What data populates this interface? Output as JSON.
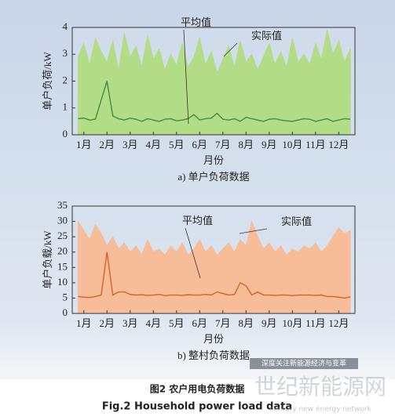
{
  "chart_data": [
    {
      "type": "area-line",
      "caption": "a) 单户负荷数据",
      "y_label": "单户负荷/kW",
      "x_label": "月份",
      "xlim": [
        0.5,
        12.7
      ],
      "ylim": [
        0,
        4
      ],
      "yticks": [
        0,
        1,
        2,
        3,
        4
      ],
      "xticks": [
        {
          "value": 1,
          "label": "1月"
        },
        {
          "value": 2,
          "label": "2月"
        },
        {
          "value": 3,
          "label": "3月"
        },
        {
          "value": 4,
          "label": "4月"
        },
        {
          "value": 5,
          "label": "5月"
        },
        {
          "value": 6,
          "label": "6月"
        },
        {
          "value": 7,
          "label": "7月"
        },
        {
          "value": 8,
          "label": "8月"
        },
        {
          "value": 9,
          "label": "9月"
        },
        {
          "value": 10,
          "label": "10月"
        },
        {
          "value": 11,
          "label": "11月"
        },
        {
          "value": 12,
          "label": "12月"
        }
      ],
      "x": [
        0.75,
        1,
        1.25,
        1.5,
        1.75,
        2,
        2.25,
        2.5,
        2.75,
        3,
        3.25,
        3.5,
        3.75,
        4,
        4.25,
        4.5,
        4.75,
        5,
        5.25,
        5.5,
        5.75,
        6,
        6.25,
        6.5,
        6.75,
        7,
        7.25,
        7.5,
        7.75,
        8,
        8.25,
        8.5,
        8.75,
        9,
        9.25,
        9.5,
        9.75,
        10,
        10.25,
        10.5,
        10.75,
        11,
        11.25,
        11.5,
        11.75,
        12,
        12.25,
        12.5
      ],
      "series": [
        {
          "name": "实际值",
          "color": "#b3dc86",
          "values": [
            2.9,
            3.4,
            2.6,
            3.6,
            3.1,
            2.7,
            3.5,
            2.4,
            3.8,
            2.9,
            3.3,
            2.5,
            3.7,
            2.8,
            3.2,
            2.4,
            3.0,
            2.6,
            3.4,
            2.5,
            2.9,
            3.6,
            2.6,
            3.1,
            2.3,
            2.8,
            3.3,
            2.5,
            3.5,
            2.7,
            3.0,
            2.4,
            2.9,
            3.4,
            2.6,
            3.1,
            2.5,
            3.6,
            2.7,
            3.0,
            2.6,
            3.4,
            2.8,
            3.9,
            3.0,
            3.5,
            2.7,
            3.2
          ]
        },
        {
          "name": "平均值",
          "color": "#3f8f3f",
          "values": [
            0.6,
            0.62,
            0.55,
            0.58,
            1.3,
            2.0,
            0.7,
            0.6,
            0.55,
            0.62,
            0.58,
            0.5,
            0.6,
            0.55,
            0.5,
            0.58,
            0.6,
            0.52,
            0.55,
            0.6,
            0.75,
            0.55,
            0.6,
            0.62,
            0.8,
            0.58,
            0.55,
            0.6,
            0.5,
            0.65,
            0.6,
            0.55,
            0.5,
            0.58,
            0.6,
            0.55,
            0.52,
            0.5,
            0.55,
            0.6,
            0.58,
            0.5,
            0.55,
            0.6,
            0.5,
            0.55,
            0.6,
            0.58
          ]
        }
      ]
    },
    {
      "type": "area-line",
      "caption": "b) 整村负荷数据",
      "y_label": "单户负载/kW",
      "x_label": "月份",
      "xlim": [
        0.5,
        12.7
      ],
      "ylim": [
        0,
        35
      ],
      "yticks": [
        0,
        5,
        10,
        15,
        20,
        25,
        30,
        35
      ],
      "xticks": [
        {
          "value": 1,
          "label": "1月"
        },
        {
          "value": 2,
          "label": "2月"
        },
        {
          "value": 3,
          "label": "3月"
        },
        {
          "value": 4,
          "label": "4月"
        },
        {
          "value": 5,
          "label": "5月"
        },
        {
          "value": 6,
          "label": "6月"
        },
        {
          "value": 7,
          "label": "7月"
        },
        {
          "value": 8,
          "label": "8月"
        },
        {
          "value": 9,
          "label": "9月"
        },
        {
          "value": 10,
          "label": "10月"
        },
        {
          "value": 11,
          "label": "11月"
        },
        {
          "value": 12,
          "label": "12月"
        }
      ],
      "x": [
        0.75,
        1,
        1.25,
        1.5,
        1.75,
        2,
        2.25,
        2.5,
        2.75,
        3,
        3.25,
        3.5,
        3.75,
        4,
        4.25,
        4.5,
        4.75,
        5,
        5.25,
        5.5,
        5.75,
        6,
        6.25,
        6.5,
        6.75,
        7,
        7.25,
        7.5,
        7.75,
        8,
        8.25,
        8.5,
        8.75,
        9,
        9.25,
        9.5,
        9.75,
        10,
        10.25,
        10.5,
        10.75,
        11,
        11.25,
        11.5,
        11.75,
        12,
        12.25,
        12.5
      ],
      "series": [
        {
          "name": "实际值",
          "color": "#f7bc98",
          "values": [
            30,
            27,
            24,
            29,
            26,
            22,
            25,
            21,
            23,
            20,
            22,
            19,
            24,
            20,
            21,
            19,
            22,
            20,
            23,
            19,
            21,
            24,
            20,
            22,
            19,
            21,
            23,
            20,
            24,
            22,
            30,
            25,
            21,
            23,
            20,
            22,
            19,
            21,
            20,
            22,
            21,
            23,
            20,
            22,
            25,
            28,
            26,
            27
          ]
        },
        {
          "name": "平均值",
          "color": "#d8622a",
          "values": [
            5.5,
            5.3,
            5.2,
            5.5,
            6,
            20,
            6,
            7,
            7,
            6.2,
            6,
            6.1,
            5.9,
            6,
            6.2,
            5.8,
            6,
            6,
            5.9,
            6.1,
            6,
            6,
            6.2,
            6,
            7,
            6.5,
            6,
            6.2,
            10,
            9,
            6,
            7,
            6,
            6,
            5.9,
            6,
            6,
            5.8,
            6,
            6,
            6,
            5.9,
            6,
            5.5,
            5.5,
            5.3,
            5,
            5.4
          ]
        }
      ]
    }
  ],
  "figure_title_cn": "图2  农户用电负荷数据",
  "figure_title_en": "Fig.2  Household power load data",
  "watermark": {
    "tagline": "深度关注新能源经济与变革",
    "brand": "世纪新能源网",
    "brand_en": "century new energy network"
  }
}
